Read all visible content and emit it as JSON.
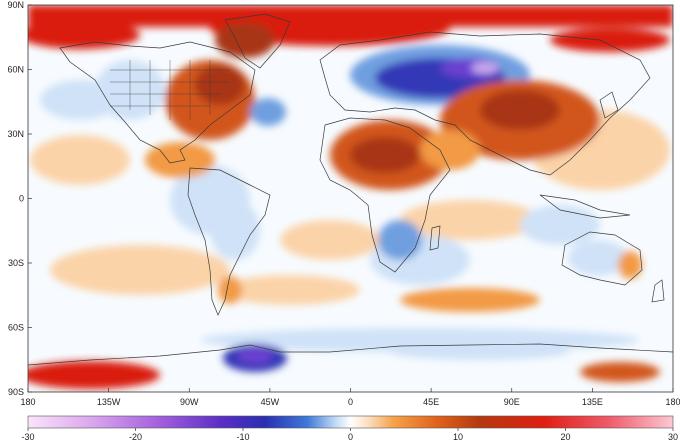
{
  "map": {
    "lat_labels": [
      "90N",
      "60N",
      "30N",
      "0",
      "30S",
      "60S",
      "90S"
    ],
    "lon_labels": [
      "180",
      "135W",
      "90W",
      "45W",
      "0",
      "45E",
      "90E",
      "135E",
      "180"
    ]
  },
  "colorbar": {
    "tick_labels": [
      "-30",
      "-20",
      "-10",
      "0",
      "10",
      "20",
      "30"
    ],
    "stops": [
      {
        "v": -30,
        "c": "#fbe4fb"
      },
      {
        "v": -24,
        "c": "#d9a6ee"
      },
      {
        "v": -18,
        "c": "#a561de"
      },
      {
        "v": -12,
        "c": "#5a2ec5"
      },
      {
        "v": -8,
        "c": "#2a2fb0"
      },
      {
        "v": -4,
        "c": "#3f79d8"
      },
      {
        "v": -1.5,
        "c": "#bcd7f4"
      },
      {
        "v": 0,
        "c": "#ffffff"
      },
      {
        "v": 1.5,
        "c": "#fde2c6"
      },
      {
        "v": 4,
        "c": "#f6a24a"
      },
      {
        "v": 8,
        "c": "#e0631c"
      },
      {
        "v": 12,
        "c": "#b43a0f"
      },
      {
        "v": 18,
        "c": "#e01e12"
      },
      {
        "v": 24,
        "c": "#ef5b6a"
      },
      {
        "v": 30,
        "c": "#fbc8d2"
      }
    ]
  },
  "colors": {
    "ocean_base": "#f7fbff",
    "coast": "#3a3a3a",
    "warm_light": "#fbd3a8",
    "warm_mid": "#f29a44",
    "warm_strong": "#d2561a",
    "warm_dark": "#a83512",
    "hot": "#d91d10",
    "cool_light": "#cfe2f7",
    "cool_mid": "#6f9fe0",
    "cool_dark": "#3037b6",
    "cold_violet": "#6a3fd0",
    "cold_pale": "#c9a9ee"
  }
}
